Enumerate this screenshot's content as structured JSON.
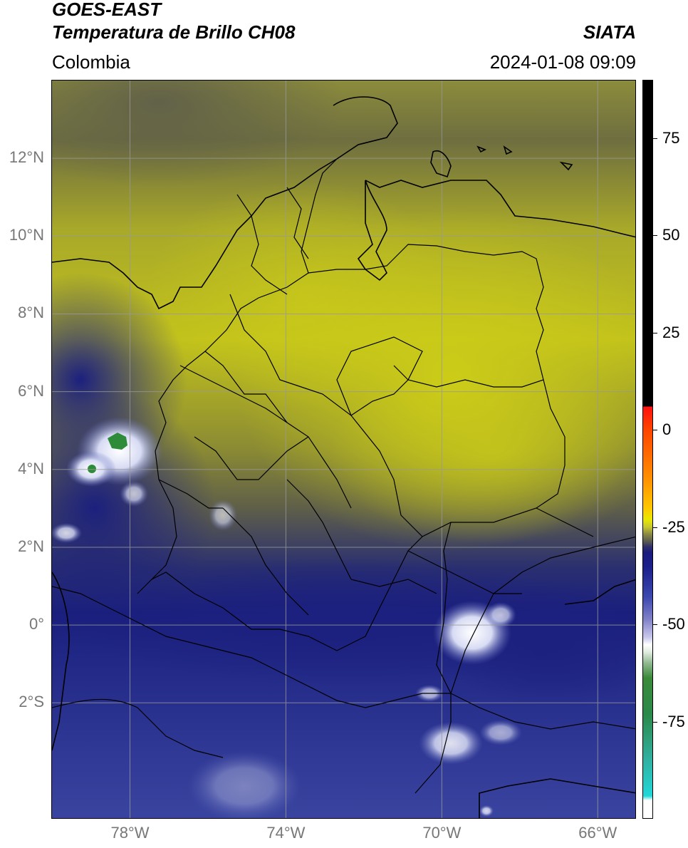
{
  "header": {
    "satellite": "GOES-EAST",
    "product": "Temperatura de Brillo CH08",
    "region": "Colombia",
    "source": "SIATA",
    "datetime": "2024-01-08 09:09"
  },
  "map": {
    "lat_range": [
      -5.0,
      14.0
    ],
    "lon_range": [
      -80.0,
      -65.0
    ],
    "lat_ticks": [
      {
        "value": 12,
        "label": "12°N"
      },
      {
        "value": 10,
        "label": "10°N"
      },
      {
        "value": 8,
        "label": "8°N"
      },
      {
        "value": 6,
        "label": "6°N"
      },
      {
        "value": 4,
        "label": "4°N"
      },
      {
        "value": 2,
        "label": "2°N"
      },
      {
        "value": 0,
        "label": "0°"
      },
      {
        "value": -2,
        "label": "2°S"
      }
    ],
    "lon_ticks": [
      {
        "value": -78,
        "label": "78°W"
      },
      {
        "value": -74,
        "label": "74°W"
      },
      {
        "value": -70,
        "label": "70°W"
      },
      {
        "value": -66,
        "label": "66°W"
      }
    ],
    "colors": {
      "yellow_cloud": "#c8c818",
      "olive": "#8a8a30",
      "dark_olive": "#5a5a48",
      "navy": "#1a237e",
      "blue": "#3040a0",
      "white_cloud": "#f0f0ff",
      "green_core": "#2e8b3a",
      "grid": "#999999",
      "border": "#000000"
    }
  },
  "colorbar": {
    "ticks": [
      {
        "value": 75,
        "label": "75"
      },
      {
        "value": 50,
        "label": "50"
      },
      {
        "value": 25,
        "label": "25"
      },
      {
        "value": 0,
        "label": "0"
      },
      {
        "value": -25,
        "label": "-25"
      },
      {
        "value": -50,
        "label": "-50"
      },
      {
        "value": -75,
        "label": "-75"
      }
    ],
    "range": [
      -100,
      90
    ]
  }
}
